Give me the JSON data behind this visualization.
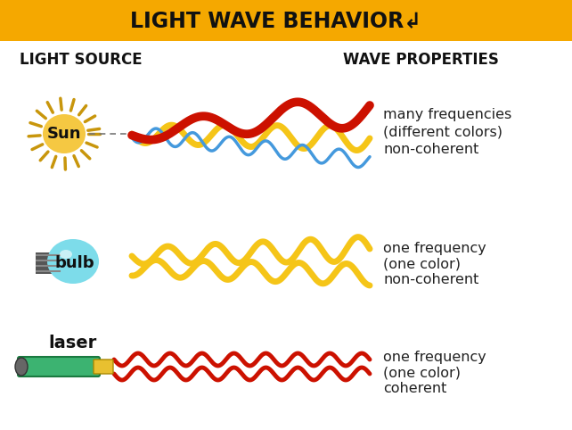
{
  "title": "LIGHT WAVE BEHAVIOR↲",
  "title_bg": "#F5A800",
  "title_color": "#111111",
  "bg_color": "#ffffff",
  "header_left": "LIGHT SOURCE",
  "header_right": "WAVE PROPERTIES",
  "sun_color": "#F5C842",
  "sun_ray_color": "#C8960C",
  "sun_label": "Sun",
  "bulb_body_color": "#7DDCEA",
  "bulb_base_color": "#555555",
  "bulb_label": "bulb",
  "laser_body_color": "#3CB371",
  "laser_tip_color": "#E8C030",
  "laser_label": "laser",
  "wave_gold": "#F5C518",
  "wave_red": "#CC1100",
  "wave_blue": "#4499DD",
  "row1_text": [
    "many frequencies",
    "(different colors)",
    "non-coherent"
  ],
  "row2_text": [
    "one frequency",
    "(one color)",
    "non-coherent"
  ],
  "row3_text": [
    "one frequency",
    "(one color)",
    "coherent"
  ],
  "text_color": "#222222",
  "text_fontsize": 11.5
}
